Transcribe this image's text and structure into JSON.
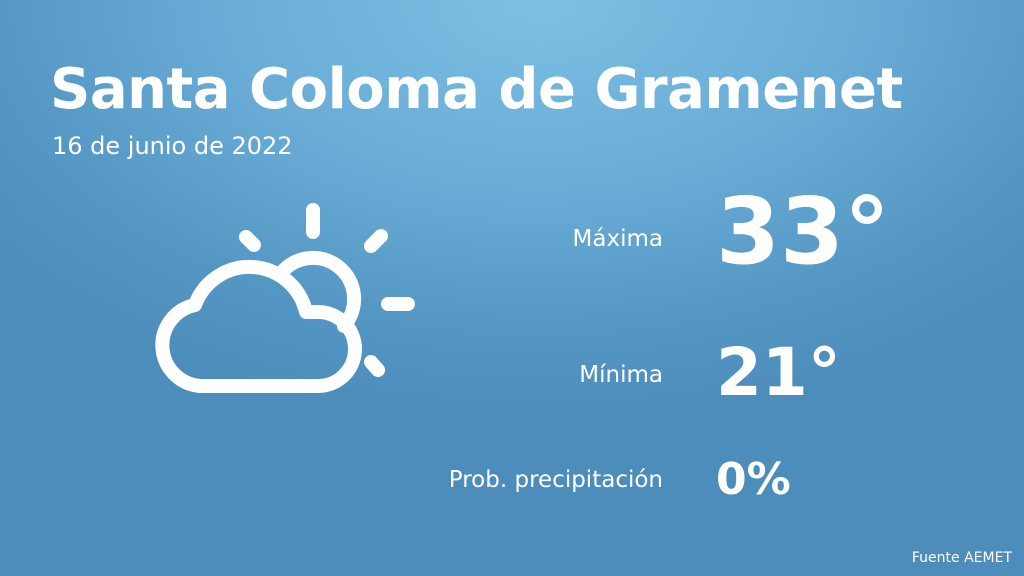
{
  "header": {
    "city": "Santa Coloma de Gramenet",
    "date": "16 de junio de 2022"
  },
  "weather": {
    "icon": "partly-cloudy-icon",
    "max_label": "Máxima",
    "max_value": "33°",
    "min_label": "Mínima",
    "min_value": "21°",
    "precip_label": "Prob. precipitación",
    "precip_value": "0%"
  },
  "footer": {
    "source": "Fuente AEMET"
  },
  "colors": {
    "background_top": "#7cc0e4",
    "background_bottom": "#4d8dbb",
    "text": "#ffffff"
  }
}
